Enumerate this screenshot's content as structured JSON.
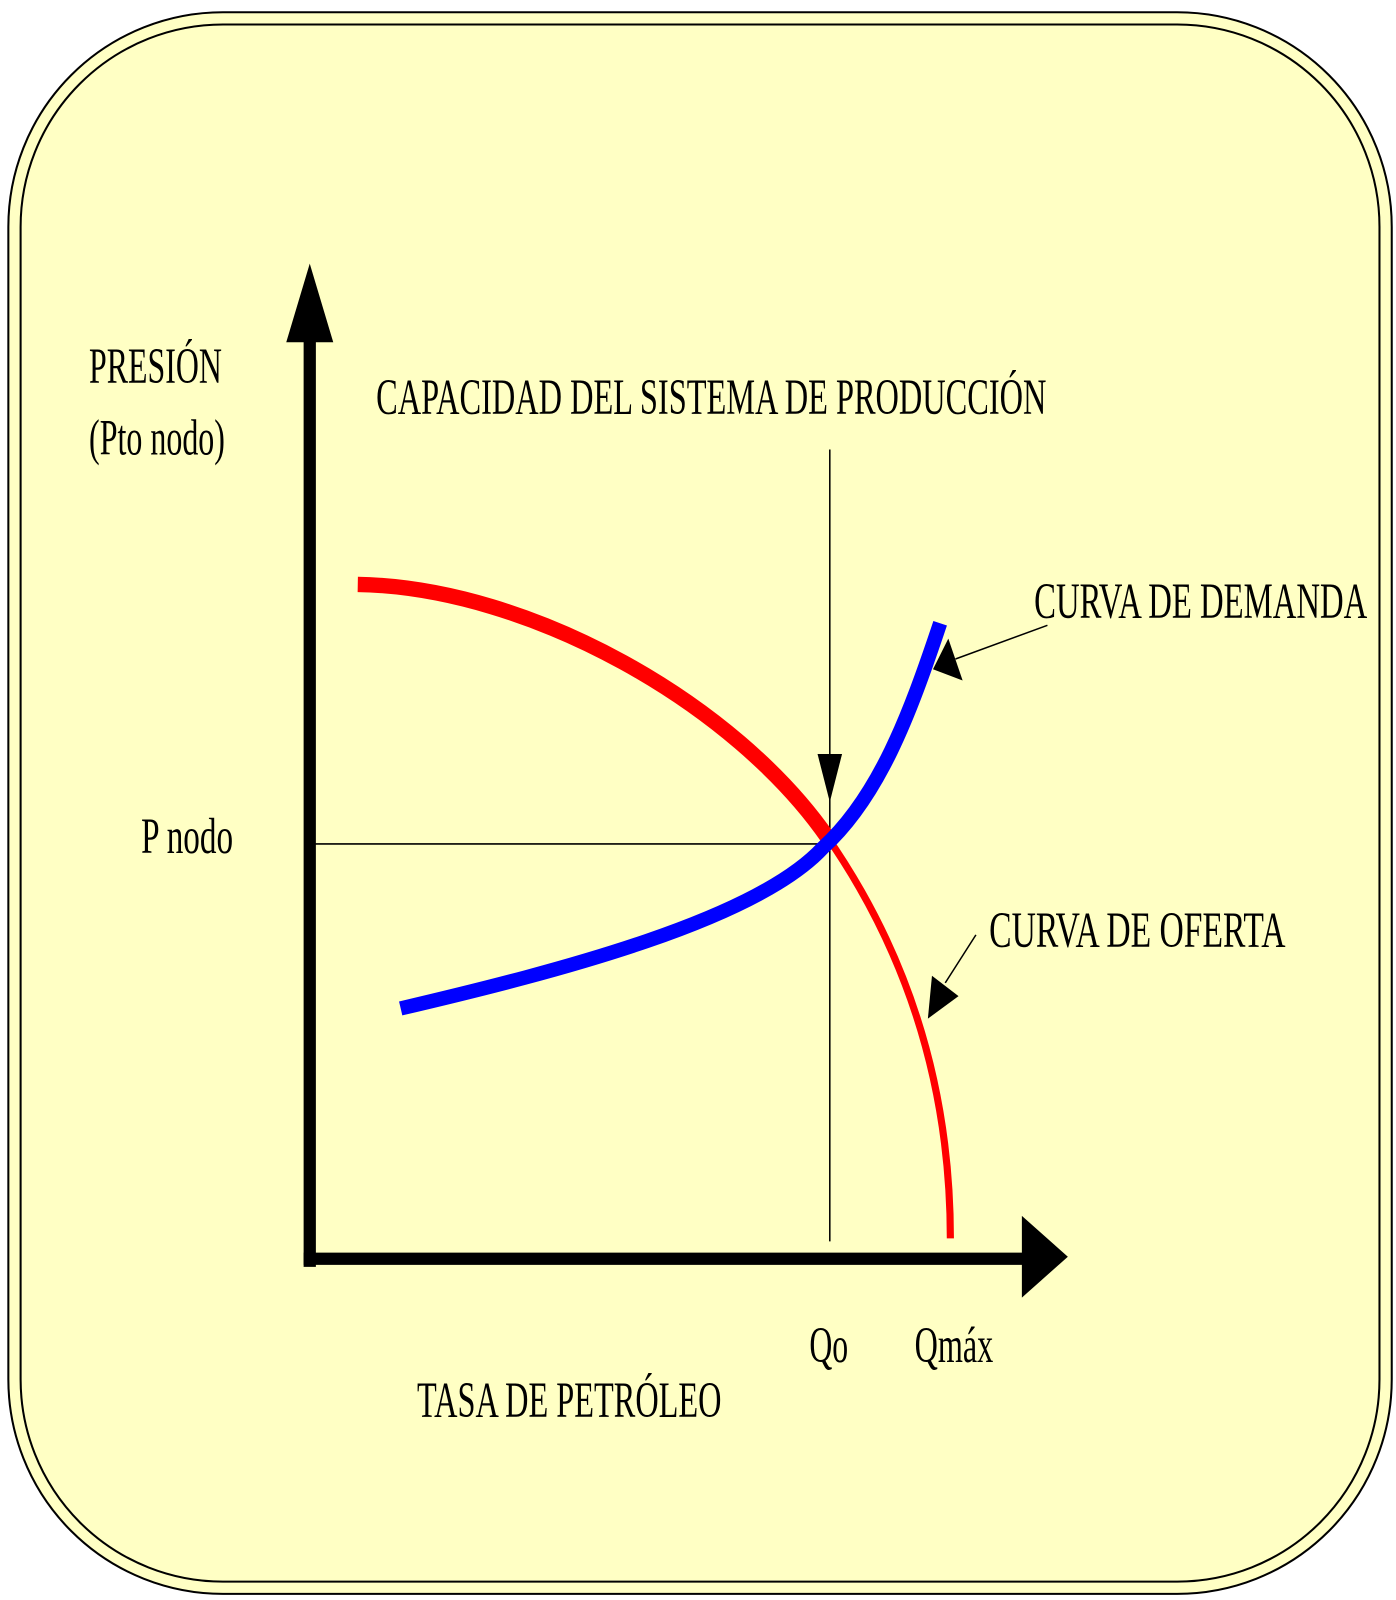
{
  "y_axis": {
    "label_line1": "PRESIÓN",
    "label_line2": "(Pto nodo)"
  },
  "x_axis": {
    "label": "TASA DE PETRÓLEO"
  },
  "capacity_label": "CAPACIDAD DEL SISTEMA DE PRODUCCIÓN",
  "demand_label": "CURVA DE DEMANDA",
  "supply_label": "CURVA DE OFERTA",
  "node_pressure_label": "P nodo",
  "q_labels": {
    "qo": "Qo",
    "qmax": "Qmáx"
  }
}
